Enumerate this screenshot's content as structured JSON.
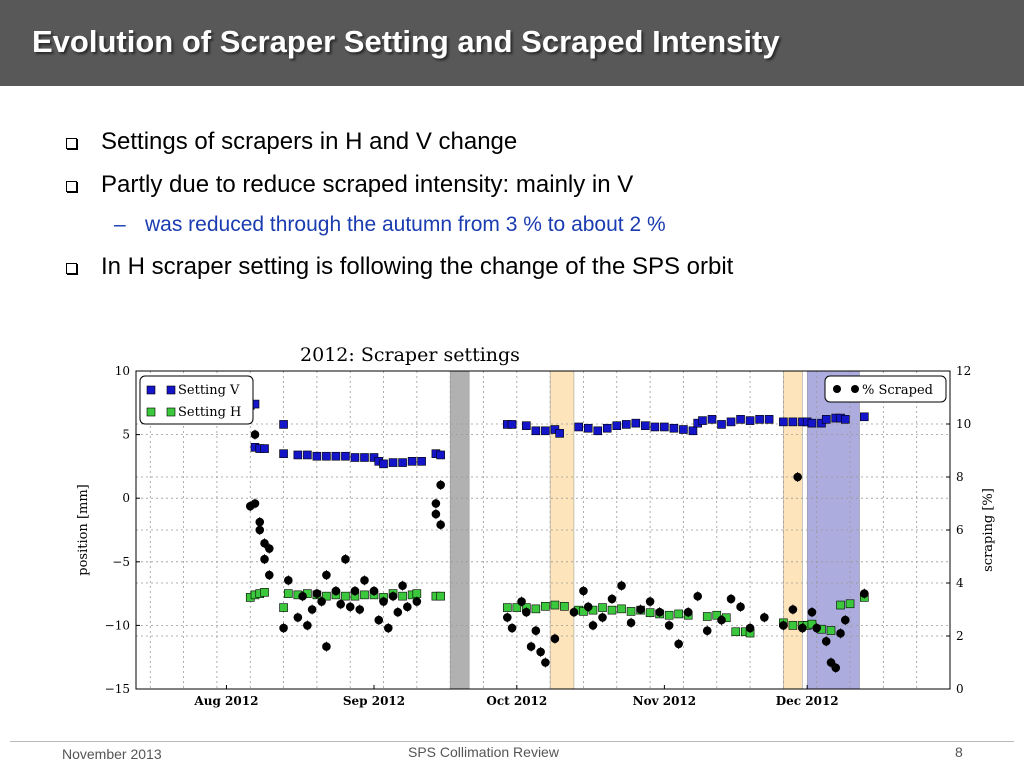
{
  "slide": {
    "title": "Evolution of Scraper Setting and Scraped Intensity",
    "bullets": [
      "Settings of scrapers in H and V change",
      "Partly due to reduce scraped intensity: mainly in V",
      "In H scraper setting is following the change of the SPS orbit"
    ],
    "sub_bullet": "was reduced through the autumn from 3 % to about 2 %",
    "sub_bullet_marker": "–"
  },
  "footer": {
    "left": "November 2013",
    "center": "SPS Collimation Review",
    "page_number": "8"
  },
  "colors": {
    "title_bar": "#585858",
    "setting_v": "#1414c8",
    "setting_h": "#3cc83c",
    "scraped": "#000000",
    "band_gray": "#a9a9a9",
    "band_orange": "#fde2b4",
    "band_blue": "#a4a4dc",
    "sub_bullet_text": "#1a3cb0"
  },
  "chart_data": {
    "type": "scatter",
    "title": "2012: Scraper settings",
    "ylabel": "position [mm]",
    "y2label": "scraping [%]",
    "ylim": [
      -15,
      10
    ],
    "y2lim": [
      0,
      12
    ],
    "xlim": [
      "2012-07-13",
      "2012-12-31"
    ],
    "yticks": [
      "10",
      "5",
      "0",
      "−5",
      "−10",
      "−15"
    ],
    "y2ticks": [
      "12",
      "10",
      "8",
      "6",
      "4",
      "2",
      "0"
    ],
    "xticks": [
      {
        "date": "2012-08-01",
        "label": "Aug 2012"
      },
      {
        "date": "2012-09-01",
        "label": "Sep 2012"
      },
      {
        "date": "2012-10-01",
        "label": "Oct 2012"
      },
      {
        "date": "2012-11-01",
        "label": "Nov 2012"
      },
      {
        "date": "2012-12-01",
        "label": "Dec 2012"
      }
    ],
    "grid": true,
    "legend_left": [
      "Setting V",
      "Setting H"
    ],
    "legend_right": [
      "% Scraped"
    ],
    "legend_left_placement": "top-left",
    "legend_right_placement": "top-right",
    "bands": [
      {
        "start": "2012-09-17",
        "end": "2012-09-21",
        "color": "gray"
      },
      {
        "start": "2012-10-08",
        "end": "2012-10-13",
        "color": "orange"
      },
      {
        "start": "2012-11-26",
        "end": "2012-11-30",
        "color": "orange"
      },
      {
        "start": "2012-12-01",
        "end": "2012-12-12",
        "color": "blue"
      }
    ],
    "series": [
      {
        "name": "Setting V",
        "axis": "left",
        "marker": "square",
        "points": [
          [
            "2012-08-06",
            7.3
          ],
          [
            "2012-08-07",
            7.4
          ],
          [
            "2012-08-07",
            4.0
          ],
          [
            "2012-08-08",
            3.9
          ],
          [
            "2012-08-09",
            3.9
          ],
          [
            "2012-08-13",
            5.8
          ],
          [
            "2012-08-13",
            3.5
          ],
          [
            "2012-08-16",
            3.4
          ],
          [
            "2012-08-18",
            3.4
          ],
          [
            "2012-08-20",
            3.3
          ],
          [
            "2012-08-22",
            3.3
          ],
          [
            "2012-08-24",
            3.3
          ],
          [
            "2012-08-26",
            3.3
          ],
          [
            "2012-08-28",
            3.2
          ],
          [
            "2012-08-30",
            3.2
          ],
          [
            "2012-09-01",
            3.2
          ],
          [
            "2012-09-02",
            2.9
          ],
          [
            "2012-09-03",
            2.7
          ],
          [
            "2012-09-05",
            2.8
          ],
          [
            "2012-09-07",
            2.8
          ],
          [
            "2012-09-09",
            2.9
          ],
          [
            "2012-09-11",
            2.9
          ],
          [
            "2012-09-14",
            3.5
          ],
          [
            "2012-09-15",
            3.4
          ],
          [
            "2012-09-29",
            5.8
          ],
          [
            "2012-09-30",
            5.8
          ],
          [
            "2012-10-03",
            5.7
          ],
          [
            "2012-10-05",
            5.3
          ],
          [
            "2012-10-07",
            5.3
          ],
          [
            "2012-10-09",
            5.4
          ],
          [
            "2012-10-10",
            5.1
          ],
          [
            "2012-10-14",
            5.6
          ],
          [
            "2012-10-16",
            5.5
          ],
          [
            "2012-10-18",
            5.3
          ],
          [
            "2012-10-20",
            5.5
          ],
          [
            "2012-10-22",
            5.7
          ],
          [
            "2012-10-24",
            5.8
          ],
          [
            "2012-10-26",
            5.9
          ],
          [
            "2012-10-28",
            5.7
          ],
          [
            "2012-10-30",
            5.6
          ],
          [
            "2012-11-01",
            5.6
          ],
          [
            "2012-11-03",
            5.5
          ],
          [
            "2012-11-05",
            5.4
          ],
          [
            "2012-11-07",
            5.3
          ],
          [
            "2012-11-08",
            5.9
          ],
          [
            "2012-11-09",
            6.1
          ],
          [
            "2012-11-11",
            6.2
          ],
          [
            "2012-11-13",
            5.8
          ],
          [
            "2012-11-15",
            6.0
          ],
          [
            "2012-11-17",
            6.2
          ],
          [
            "2012-11-19",
            6.1
          ],
          [
            "2012-11-21",
            6.2
          ],
          [
            "2012-11-23",
            6.2
          ],
          [
            "2012-11-26",
            6.0
          ],
          [
            "2012-11-28",
            6.0
          ],
          [
            "2012-11-30",
            6.0
          ],
          [
            "2012-12-01",
            6.0
          ],
          [
            "2012-12-02",
            5.9
          ],
          [
            "2012-12-04",
            5.9
          ],
          [
            "2012-12-05",
            6.2
          ],
          [
            "2012-12-07",
            6.3
          ],
          [
            "2012-12-08",
            6.3
          ],
          [
            "2012-12-09",
            6.2
          ],
          [
            "2012-12-13",
            6.4
          ]
        ]
      },
      {
        "name": "Setting H",
        "axis": "left",
        "marker": "square",
        "points": [
          [
            "2012-08-06",
            -7.8
          ],
          [
            "2012-08-07",
            -7.6
          ],
          [
            "2012-08-08",
            -7.5
          ],
          [
            "2012-08-09",
            -7.4
          ],
          [
            "2012-08-13",
            -8.6
          ],
          [
            "2012-08-14",
            -7.5
          ],
          [
            "2012-08-16",
            -7.6
          ],
          [
            "2012-08-18",
            -7.5
          ],
          [
            "2012-08-20",
            -7.6
          ],
          [
            "2012-08-22",
            -7.7
          ],
          [
            "2012-08-24",
            -7.6
          ],
          [
            "2012-08-26",
            -7.7
          ],
          [
            "2012-08-28",
            -7.7
          ],
          [
            "2012-08-30",
            -7.6
          ],
          [
            "2012-09-01",
            -7.6
          ],
          [
            "2012-09-03",
            -7.8
          ],
          [
            "2012-09-05",
            -7.5
          ],
          [
            "2012-09-07",
            -7.7
          ],
          [
            "2012-09-09",
            -7.6
          ],
          [
            "2012-09-10",
            -7.5
          ],
          [
            "2012-09-14",
            -7.7
          ],
          [
            "2012-09-15",
            -7.7
          ],
          [
            "2012-09-29",
            -8.6
          ],
          [
            "2012-10-01",
            -8.6
          ],
          [
            "2012-10-03",
            -8.6
          ],
          [
            "2012-10-05",
            -8.7
          ],
          [
            "2012-10-07",
            -8.5
          ],
          [
            "2012-10-09",
            -8.4
          ],
          [
            "2012-10-11",
            -8.5
          ],
          [
            "2012-10-14",
            -8.8
          ],
          [
            "2012-10-15",
            -8.9
          ],
          [
            "2012-10-17",
            -8.8
          ],
          [
            "2012-10-19",
            -8.6
          ],
          [
            "2012-10-21",
            -8.8
          ],
          [
            "2012-10-23",
            -8.7
          ],
          [
            "2012-10-25",
            -8.9
          ],
          [
            "2012-10-27",
            -8.8
          ],
          [
            "2012-10-29",
            -9.0
          ],
          [
            "2012-10-31",
            -9.1
          ],
          [
            "2012-11-02",
            -9.2
          ],
          [
            "2012-11-04",
            -9.1
          ],
          [
            "2012-11-06",
            -9.2
          ],
          [
            "2012-11-10",
            -9.3
          ],
          [
            "2012-11-12",
            -9.2
          ],
          [
            "2012-11-14",
            -9.4
          ],
          [
            "2012-11-16",
            -10.5
          ],
          [
            "2012-11-18",
            -10.5
          ],
          [
            "2012-11-19",
            -10.6
          ],
          [
            "2012-11-26",
            -9.8
          ],
          [
            "2012-11-28",
            -10.0
          ],
          [
            "2012-11-30",
            -10.0
          ],
          [
            "2012-12-01",
            -10.0
          ],
          [
            "2012-12-02",
            -9.9
          ],
          [
            "2012-12-04",
            -10.3
          ],
          [
            "2012-12-06",
            -10.4
          ],
          [
            "2012-12-08",
            -8.4
          ],
          [
            "2012-12-10",
            -8.3
          ],
          [
            "2012-12-13",
            -7.8
          ]
        ]
      },
      {
        "name": "% Scraped",
        "axis": "right",
        "marker": "circle",
        "points": [
          [
            "2012-08-06",
            6.9
          ],
          [
            "2012-08-07",
            7.0
          ],
          [
            "2012-08-07",
            9.6
          ],
          [
            "2012-08-08",
            6.3
          ],
          [
            "2012-08-08",
            6.0
          ],
          [
            "2012-08-09",
            5.5
          ],
          [
            "2012-08-09",
            4.9
          ],
          [
            "2012-08-10",
            5.3
          ],
          [
            "2012-08-10",
            4.3
          ],
          [
            "2012-08-13",
            2.3
          ],
          [
            "2012-08-14",
            4.1
          ],
          [
            "2012-08-16",
            2.7
          ],
          [
            "2012-08-17",
            3.5
          ],
          [
            "2012-08-18",
            2.4
          ],
          [
            "2012-08-19",
            3.0
          ],
          [
            "2012-08-20",
            3.6
          ],
          [
            "2012-08-21",
            3.3
          ],
          [
            "2012-08-22",
            4.3
          ],
          [
            "2012-08-22",
            1.6
          ],
          [
            "2012-08-24",
            3.7
          ],
          [
            "2012-08-25",
            3.2
          ],
          [
            "2012-08-26",
            4.9
          ],
          [
            "2012-08-27",
            3.1
          ],
          [
            "2012-08-28",
            3.7
          ],
          [
            "2012-08-29",
            3.0
          ],
          [
            "2012-08-30",
            4.1
          ],
          [
            "2012-09-01",
            3.7
          ],
          [
            "2012-09-02",
            2.6
          ],
          [
            "2012-09-03",
            3.3
          ],
          [
            "2012-09-04",
            2.3
          ],
          [
            "2012-09-05",
            3.5
          ],
          [
            "2012-09-06",
            2.9
          ],
          [
            "2012-09-07",
            3.9
          ],
          [
            "2012-09-08",
            3.1
          ],
          [
            "2012-09-10",
            3.3
          ],
          [
            "2012-09-14",
            7.0
          ],
          [
            "2012-09-14",
            6.6
          ],
          [
            "2012-09-15",
            7.7
          ],
          [
            "2012-09-15",
            6.2
          ],
          [
            "2012-09-29",
            2.7
          ],
          [
            "2012-09-30",
            2.3
          ],
          [
            "2012-10-02",
            3.3
          ],
          [
            "2012-10-03",
            2.9
          ],
          [
            "2012-10-04",
            1.6
          ],
          [
            "2012-10-05",
            2.2
          ],
          [
            "2012-10-06",
            1.4
          ],
          [
            "2012-10-07",
            1.0
          ],
          [
            "2012-10-09",
            1.9
          ],
          [
            "2012-10-13",
            2.9
          ],
          [
            "2012-10-15",
            3.7
          ],
          [
            "2012-10-16",
            3.1
          ],
          [
            "2012-10-17",
            2.4
          ],
          [
            "2012-10-19",
            2.7
          ],
          [
            "2012-10-21",
            3.4
          ],
          [
            "2012-10-23",
            3.9
          ],
          [
            "2012-10-25",
            2.5
          ],
          [
            "2012-10-27",
            3.0
          ],
          [
            "2012-10-29",
            3.3
          ],
          [
            "2012-10-31",
            2.9
          ],
          [
            "2012-11-02",
            2.4
          ],
          [
            "2012-11-04",
            1.7
          ],
          [
            "2012-11-06",
            2.9
          ],
          [
            "2012-11-08",
            3.5
          ],
          [
            "2012-11-10",
            2.2
          ],
          [
            "2012-11-13",
            2.6
          ],
          [
            "2012-11-15",
            3.4
          ],
          [
            "2012-11-17",
            3.1
          ],
          [
            "2012-11-19",
            2.3
          ],
          [
            "2012-11-22",
            2.7
          ],
          [
            "2012-11-26",
            2.4
          ],
          [
            "2012-11-28",
            3.0
          ],
          [
            "2012-11-29",
            8.0
          ],
          [
            "2012-11-30",
            2.3
          ],
          [
            "2012-12-02",
            2.9
          ],
          [
            "2012-12-03",
            2.3
          ],
          [
            "2012-12-05",
            1.8
          ],
          [
            "2012-12-06",
            1.0
          ],
          [
            "2012-12-07",
            0.8
          ],
          [
            "2012-12-08",
            2.1
          ],
          [
            "2012-12-09",
            2.6
          ],
          [
            "2012-12-13",
            3.6
          ]
        ]
      }
    ]
  }
}
